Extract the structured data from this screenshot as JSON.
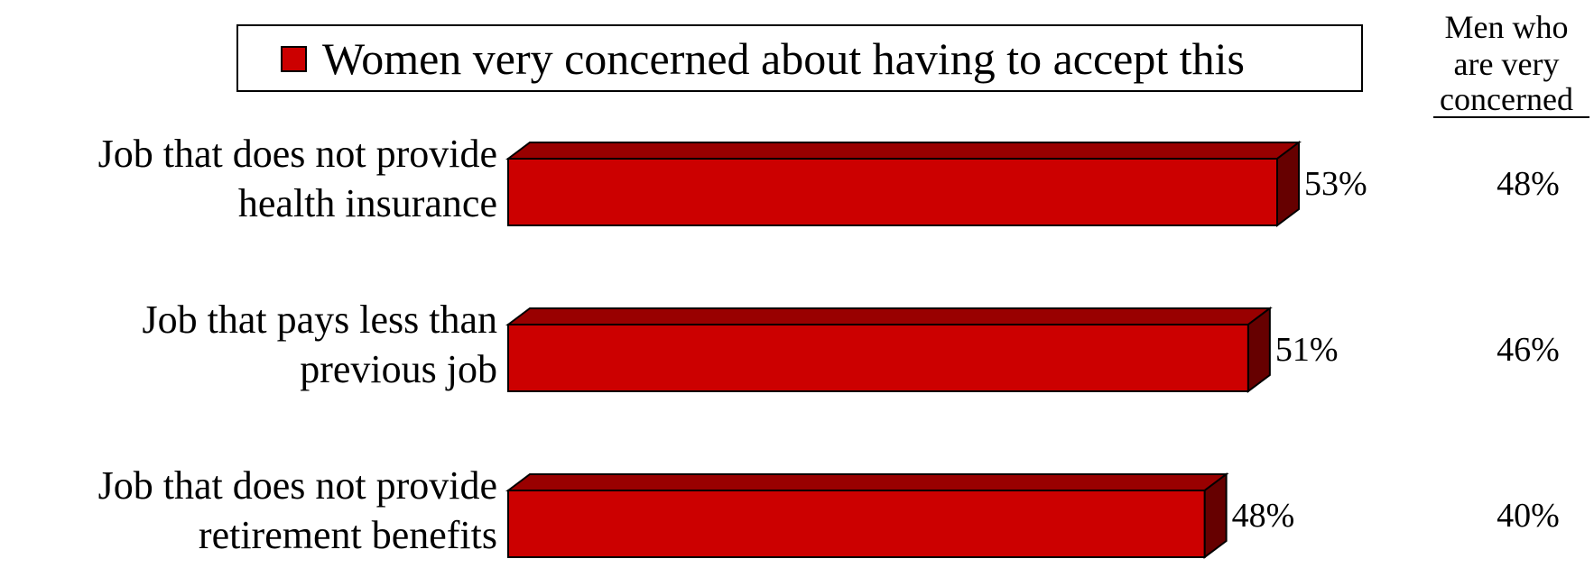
{
  "chart_data": {
    "type": "bar",
    "orientation": "horizontal",
    "style": "3d",
    "categories": [
      [
        "Job that does not provide",
        "health insurance"
      ],
      [
        "Job that pays less than",
        "previous job"
      ],
      [
        "Job that does not provide",
        "retirement benefits"
      ]
    ],
    "series": [
      {
        "name": "Women very concerned about having to accept this",
        "values": [
          53,
          51,
          48
        ],
        "labels": [
          "53%",
          "51%",
          "48%"
        ],
        "color": "#cc0000"
      }
    ],
    "men_column": {
      "header": [
        "Men who",
        "are very",
        "concerned"
      ],
      "values": [
        "48%",
        "46%",
        "40%"
      ]
    },
    "legend_position": "top",
    "xlim": [
      0,
      100
    ],
    "grid": false,
    "colors": {
      "bar_front": "#cc0000",
      "bar_top": "#990000",
      "bar_side": "#660000",
      "outline": "#000000"
    }
  }
}
